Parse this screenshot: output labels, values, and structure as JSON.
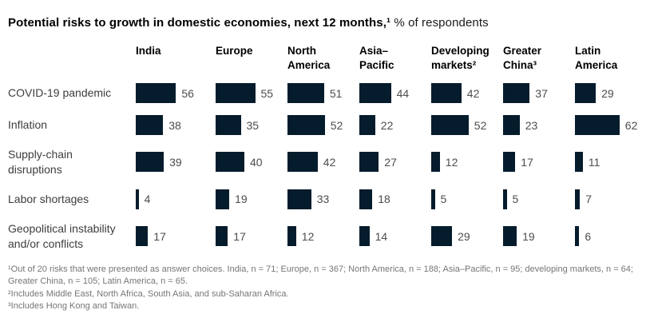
{
  "title": {
    "bold": "Potential risks to growth in domestic economies, next 12 months,¹",
    "regular": " % of respondents"
  },
  "chart_data": {
    "type": "bar",
    "orientation": "horizontal",
    "unit": "% of respondents",
    "title": "Potential risks to growth in domestic economies, next 12 months",
    "value_range": [
      0,
      100
    ],
    "grid": false,
    "legend": "none",
    "bar_color": "#051c2c",
    "categories": [
      "COVID-19 pandemic",
      "Inflation",
      "Supply-chain disruptions",
      "Labor shortages",
      "Geopolitical instability and/or conflicts"
    ],
    "series": [
      {
        "name": "India",
        "header": "India",
        "values": [
          56,
          38,
          39,
          4,
          17
        ]
      },
      {
        "name": "Europe",
        "header": "Europe",
        "values": [
          55,
          35,
          40,
          19,
          17
        ]
      },
      {
        "name": "North America",
        "header": "North America",
        "values": [
          51,
          52,
          42,
          33,
          12
        ]
      },
      {
        "name": "Asia–Pacific",
        "header": "Asia–Pacific",
        "values": [
          44,
          22,
          27,
          18,
          14
        ]
      },
      {
        "name": "Developing markets",
        "header": "Developing markets²",
        "values": [
          42,
          52,
          12,
          5,
          29
        ]
      },
      {
        "name": "Greater China",
        "header": "Greater China³",
        "values": [
          37,
          23,
          17,
          5,
          19
        ]
      },
      {
        "name": "Latin America",
        "header": "Latin America",
        "values": [
          29,
          62,
          11,
          7,
          6
        ]
      }
    ]
  },
  "footnotes": [
    "¹Out of 20 risks that were presented as answer choices. India, n = 71; Europe, n = 367; North America, n = 188; Asia–Pacific, n = 95; developing markets, n = 64; Greater China, n = 105; Latin America, n = 65.",
    "²Includes Middle East, North Africa, South Asia, and sub-Saharan Africa.",
    "³Includes Hong Kong and Taiwan."
  ]
}
